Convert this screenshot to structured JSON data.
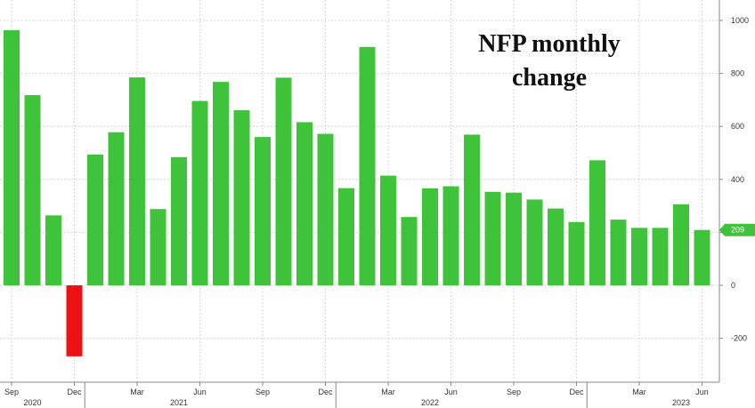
{
  "chart_data": {
    "type": "bar",
    "title_lines": [
      "NFP monthly",
      "change"
    ],
    "xlabel": "",
    "ylabel": "",
    "ylim": [
      -300,
      1000
    ],
    "y_ticks": [
      -200,
      0,
      200,
      400,
      600,
      800,
      1000
    ],
    "grid": true,
    "legend": "none",
    "categories": [
      "Sep 2020",
      "Oct 2020",
      "Nov 2020",
      "Dec 2020",
      "Jan 2021",
      "Feb 2021",
      "Mar 2021",
      "Apr 2021",
      "May 2021",
      "Jun 2021",
      "Jul 2021",
      "Aug 2021",
      "Sep 2021",
      "Oct 2021",
      "Nov 2021",
      "Dec 2021",
      "Jan 2022",
      "Feb 2022",
      "Mar 2022",
      "Apr 2022",
      "May 2022",
      "Jun 2022",
      "Jul 2022",
      "Aug 2022",
      "Sep 2022",
      "Oct 2022",
      "Nov 2022",
      "Dec 2022",
      "Jan 2023",
      "Feb 2023",
      "Mar 2023",
      "Apr 2023",
      "May 2023",
      "Jun 2023"
    ],
    "values": [
      963,
      718,
      264,
      -268,
      494,
      578,
      785,
      288,
      484,
      696,
      768,
      661,
      560,
      784,
      616,
      572,
      367,
      900,
      414,
      258,
      366,
      374,
      569,
      353,
      350,
      324,
      290,
      239,
      472,
      248,
      217,
      217,
      306,
      209
    ],
    "x_tick_labels": [
      {
        "index": 0,
        "label": "Sep"
      },
      {
        "index": 3,
        "label": "Dec"
      },
      {
        "index": 6,
        "label": "Mar"
      },
      {
        "index": 9,
        "label": "Jun"
      },
      {
        "index": 12,
        "label": "Sep"
      },
      {
        "index": 15,
        "label": "Dec"
      },
      {
        "index": 18,
        "label": "Mar"
      },
      {
        "index": 21,
        "label": "Jun"
      },
      {
        "index": 24,
        "label": "Sep"
      },
      {
        "index": 27,
        "label": "Dec"
      },
      {
        "index": 30,
        "label": "Mar"
      },
      {
        "index": 33,
        "label": "Jun"
      }
    ],
    "year_labels": [
      {
        "index": 1,
        "label": "2020"
      },
      {
        "index": 8,
        "label": "2021"
      },
      {
        "index": 20,
        "label": "2022"
      },
      {
        "index": 32,
        "label": "2023"
      }
    ],
    "last_value_marker": {
      "value": 209,
      "label": "209"
    },
    "colors": {
      "positive": "#3fc33a",
      "negative": "#ee1111",
      "grid": "#d6d6d6",
      "axis": "#888888",
      "marker": "#3fc33a"
    }
  }
}
